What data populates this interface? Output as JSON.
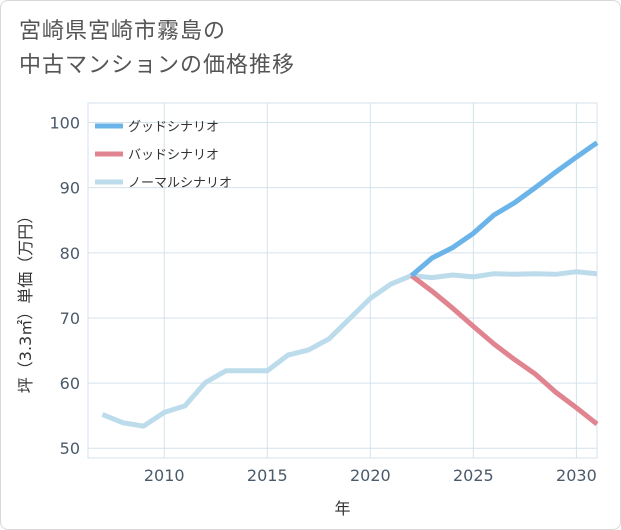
{
  "title_lines": [
    "宮崎県宮崎市霧島の",
    "中古マンションの価格推移"
  ],
  "chart_data": {
    "type": "line",
    "xlabel": "年",
    "ylabel": "坪（3.3㎡）単価（万円）",
    "xlim": [
      2006.3,
      2031
    ],
    "ylim": [
      48.5,
      103
    ],
    "x_ticks": [
      2010,
      2015,
      2020,
      2025,
      2030
    ],
    "y_ticks": [
      50,
      60,
      70,
      80,
      90,
      100
    ],
    "grid": true,
    "legend_position": "top-left",
    "series": [
      {
        "name": "グッドシナリオ",
        "color": "#6ab4ea",
        "x": [
          2022,
          2023,
          2024,
          2025,
          2026,
          2027,
          2028,
          2029,
          2030,
          2031
        ],
        "y": [
          76.5,
          79.2,
          80.8,
          83.0,
          85.8,
          87.7,
          90.0,
          92.4,
          94.7,
          96.9
        ]
      },
      {
        "name": "バッドシナリオ",
        "color": "#e0858f",
        "x": [
          2022,
          2023,
          2024,
          2025,
          2026,
          2027,
          2028,
          2029,
          2030,
          2031
        ],
        "y": [
          76.5,
          74.1,
          71.5,
          68.7,
          66.0,
          63.6,
          61.4,
          58.6,
          56.2,
          53.7
        ]
      },
      {
        "name": "ノーマルシナリオ",
        "color": "#bcdcec",
        "x": [
          2007,
          2008,
          2009,
          2010,
          2011,
          2012,
          2013,
          2014,
          2015,
          2016,
          2017,
          2018,
          2019,
          2020,
          2021,
          2022,
          2023,
          2024,
          2025,
          2026,
          2027,
          2028,
          2029,
          2030,
          2031
        ],
        "y": [
          55.2,
          53.9,
          53.4,
          55.5,
          56.5,
          60.1,
          61.9,
          61.9,
          61.9,
          64.3,
          65.1,
          66.8,
          69.9,
          73.0,
          75.2,
          76.5,
          76.2,
          76.6,
          76.3,
          76.8,
          76.7,
          76.8,
          76.7,
          77.1,
          76.8
        ]
      }
    ]
  }
}
